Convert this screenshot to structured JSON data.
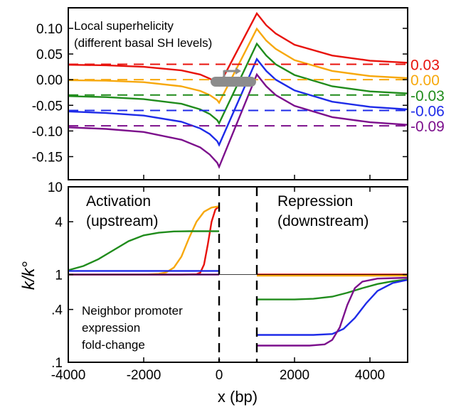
{
  "chart_data": [
    {
      "type": "line",
      "annotation": [
        "Local superhelicity",
        "(different basal SH levels)"
      ],
      "xlim": [
        -4000,
        5000
      ],
      "ylim": [
        -0.195,
        0.14
      ],
      "yticks": [
        "0.10",
        "0.05",
        "0.00",
        "-0.05",
        "-0.10",
        "-0.15"
      ],
      "ytick_values": [
        0.1,
        0.05,
        0.0,
        -0.05,
        -0.1,
        -0.15
      ],
      "gene_body": [
        0,
        1000
      ],
      "series": [
        {
          "name": "0.03",
          "color": "#e8120c",
          "basal": 0.03,
          "x": [
            -4000,
            -3000,
            -2000,
            -1000,
            -500,
            -250,
            -50,
            0,
            1000,
            1250,
            1500,
            2000,
            3000,
            4000,
            5000
          ],
          "y": [
            0.029,
            0.028,
            0.025,
            0.018,
            0.01,
            0.002,
            -0.006,
            -0.011,
            0.129,
            0.106,
            0.09,
            0.068,
            0.047,
            0.037,
            0.033
          ]
        },
        {
          "name": "0.00",
          "color": "#f7a80c",
          "basal": 0.0,
          "x": [
            -4000,
            -3000,
            -2000,
            -1000,
            -500,
            -250,
            -50,
            0,
            1000,
            1250,
            1500,
            2000,
            3000,
            4000,
            5000
          ],
          "y": [
            -0.001,
            -0.002,
            -0.005,
            -0.013,
            -0.022,
            -0.03,
            -0.04,
            -0.045,
            0.099,
            0.076,
            0.06,
            0.038,
            0.017,
            0.007,
            0.003
          ]
        },
        {
          "name": "-0.03",
          "color": "#208c1c",
          "basal": -0.03,
          "x": [
            -4000,
            -3000,
            -2000,
            -1000,
            -500,
            -250,
            -50,
            0,
            1000,
            1250,
            1500,
            2000,
            3000,
            4000,
            5000
          ],
          "y": [
            -0.032,
            -0.034,
            -0.038,
            -0.047,
            -0.058,
            -0.067,
            -0.079,
            -0.085,
            0.07,
            0.047,
            0.03,
            0.009,
            -0.013,
            -0.023,
            -0.027
          ]
        },
        {
          "name": "-0.06",
          "color": "#1e2be8",
          "basal": -0.06,
          "x": [
            -4000,
            -3000,
            -2000,
            -1000,
            -500,
            -250,
            -50,
            0,
            1000,
            1250,
            1500,
            2000,
            3000,
            4000,
            5000
          ],
          "y": [
            -0.062,
            -0.065,
            -0.07,
            -0.082,
            -0.095,
            -0.106,
            -0.12,
            -0.127,
            0.04,
            0.017,
            0.0,
            -0.021,
            -0.043,
            -0.053,
            -0.058
          ]
        },
        {
          "name": "-0.09",
          "color": "#7c0f8c",
          "basal": -0.09,
          "x": [
            -4000,
            -3000,
            -2000,
            -1000,
            -500,
            -250,
            -50,
            0,
            1000,
            1250,
            1500,
            2000,
            3000,
            4000,
            5000
          ],
          "y": [
            -0.093,
            -0.096,
            -0.102,
            -0.117,
            -0.132,
            -0.146,
            -0.162,
            -0.17,
            0.01,
            -0.013,
            -0.03,
            -0.051,
            -0.073,
            -0.083,
            -0.088
          ]
        }
      ]
    },
    {
      "type": "line",
      "log_y": true,
      "xlim": [
        -4000,
        5000
      ],
      "ylim": [
        0.1,
        10
      ],
      "xlabel": "x (bp)",
      "ylabel": "k/k°",
      "xticks": [
        "-4000",
        "-2000",
        "0",
        "2000",
        "4000"
      ],
      "xtick_values": [
        -4000,
        -2000,
        0,
        2000,
        4000
      ],
      "yticks": [
        "10",
        "4",
        "1",
        ".4",
        ".1"
      ],
      "ytick_values": [
        10,
        4,
        1,
        0.4,
        0.1
      ],
      "annotations": {
        "activation": [
          "Activation",
          "(upstream)"
        ],
        "repression": [
          "Repression",
          "(downstream)"
        ],
        "neighbor": [
          "Neighbor promoter",
          "expression",
          "fold-change"
        ]
      },
      "series": [
        {
          "name": "0.03",
          "color": "#e8120c",
          "x": [
            -4000,
            -1000,
            -600,
            -500,
            -400,
            -300,
            -200,
            -100,
            0,
            1000,
            5000
          ],
          "y": [
            1.0,
            1.0,
            1.01,
            1.05,
            1.3,
            2.2,
            4.0,
            5.5,
            6.0,
            1.0,
            1.0
          ]
        },
        {
          "name": "0.00",
          "color": "#f7a80c",
          "x": [
            -4000,
            -2000,
            -1600,
            -1400,
            -1200,
            -1000,
            -800,
            -600,
            -400,
            -200,
            0,
            1000,
            5000
          ],
          "y": [
            1.0,
            1.0,
            1.02,
            1.06,
            1.2,
            1.6,
            2.6,
            4.0,
            5.2,
            5.8,
            6.0,
            0.97,
            0.97
          ]
        },
        {
          "name": "-0.03",
          "color": "#208c1c",
          "x": [
            -4000,
            -3600,
            -3200,
            -2800,
            -2400,
            -2000,
            -1600,
            -1200,
            -800,
            -400,
            0,
            1000,
            2000,
            2500,
            3000,
            3400,
            3800,
            4200,
            4600,
            5000
          ],
          "y": [
            1.12,
            1.25,
            1.5,
            1.9,
            2.4,
            2.8,
            3.0,
            3.1,
            3.12,
            3.12,
            3.12,
            0.52,
            0.52,
            0.53,
            0.56,
            0.62,
            0.7,
            0.78,
            0.84,
            0.88
          ]
        },
        {
          "name": "-0.06",
          "color": "#1e2be8",
          "x": [
            -4000,
            0,
            1000,
            2500,
            3000,
            3300,
            3600,
            3900,
            4200,
            4600,
            5000
          ],
          "y": [
            1.1,
            1.1,
            0.205,
            0.205,
            0.21,
            0.24,
            0.32,
            0.47,
            0.65,
            0.8,
            0.87
          ]
        },
        {
          "name": "-0.09",
          "color": "#7c0f8c",
          "x": [
            -4000,
            0,
            1000,
            2400,
            2800,
            3000,
            3200,
            3400,
            3600,
            3800,
            4200,
            5000
          ],
          "y": [
            1.0,
            1.0,
            0.155,
            0.155,
            0.16,
            0.18,
            0.25,
            0.45,
            0.7,
            0.83,
            0.9,
            0.92
          ]
        }
      ]
    }
  ]
}
